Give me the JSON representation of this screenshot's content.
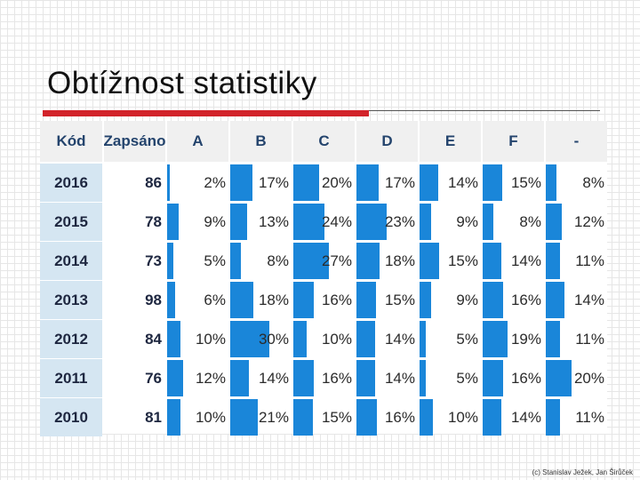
{
  "slide": {
    "title": "Obtížnost statistiky",
    "footer": "(c) Stanislav Ježek, Jan Širůček",
    "colors": {
      "accent_red": "#d2232a",
      "bar_blue": "#1a86d9",
      "code_bg": "#d5e6f2",
      "header_text": "#24446d"
    }
  },
  "table": {
    "headers": [
      "Kód",
      "Zapsáno",
      "A",
      "B",
      "C",
      "D",
      "E",
      "F",
      "-"
    ],
    "rows": [
      {
        "code": "2016",
        "enrolled": "86",
        "values": [
          "2%",
          "17%",
          "20%",
          "17%",
          "14%",
          "15%",
          "8%"
        ],
        "numbers": [
          2,
          17,
          20,
          17,
          14,
          15,
          8
        ]
      },
      {
        "code": "2015",
        "enrolled": "78",
        "values": [
          "9%",
          "13%",
          "24%",
          "23%",
          "9%",
          "8%",
          "12%"
        ],
        "numbers": [
          9,
          13,
          24,
          23,
          9,
          8,
          12
        ]
      },
      {
        "code": "2014",
        "enrolled": "73",
        "values": [
          "5%",
          "8%",
          "27%",
          "18%",
          "15%",
          "14%",
          "11%"
        ],
        "numbers": [
          5,
          8,
          27,
          18,
          15,
          14,
          11
        ]
      },
      {
        "code": "2013",
        "enrolled": "98",
        "values": [
          "6%",
          "18%",
          "16%",
          "15%",
          "9%",
          "16%",
          "14%"
        ],
        "numbers": [
          6,
          18,
          16,
          15,
          9,
          16,
          14
        ]
      },
      {
        "code": "2012",
        "enrolled": "84",
        "values": [
          "10%",
          "30%",
          "10%",
          "14%",
          "5%",
          "19%",
          "11%"
        ],
        "numbers": [
          10,
          30,
          10,
          14,
          5,
          19,
          11
        ]
      },
      {
        "code": "2011",
        "enrolled": "76",
        "values": [
          "12%",
          "14%",
          "16%",
          "14%",
          "5%",
          "16%",
          "20%"
        ],
        "numbers": [
          12,
          14,
          16,
          14,
          5,
          16,
          20
        ]
      },
      {
        "code": "2010",
        "enrolled": "81",
        "values": [
          "10%",
          "21%",
          "15%",
          "16%",
          "10%",
          "14%",
          "11%"
        ],
        "numbers": [
          10,
          21,
          15,
          16,
          10,
          14,
          11
        ]
      }
    ]
  }
}
